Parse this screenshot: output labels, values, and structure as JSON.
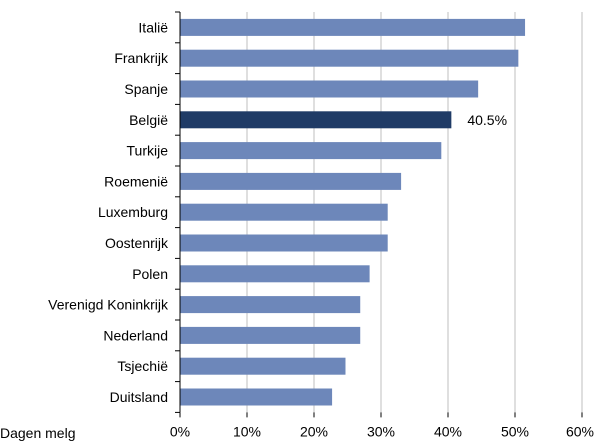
{
  "chart_data": {
    "type": "bar",
    "orientation": "horizontal",
    "categories": [
      "Italië",
      "Frankrijk",
      "Spanje",
      "België",
      "Turkije",
      "Roemenië",
      "Luxemburg",
      "Oostenrijk",
      "Polen",
      "Verenigd Koninkrijk",
      "Nederland",
      "Tsjechië",
      "Duitsland"
    ],
    "values": [
      51.5,
      50.5,
      44.5,
      40.5,
      39.0,
      33.0,
      31.0,
      31.0,
      28.3,
      26.9,
      26.9,
      24.7,
      22.7
    ],
    "highlight_category": "België",
    "data_labels": [
      {
        "category": "België",
        "text": "40.5%"
      }
    ],
    "xlim": [
      0,
      60
    ],
    "x_ticks": [
      0,
      10,
      20,
      30,
      40,
      50,
      60
    ],
    "x_tick_labels": [
      "0%",
      "10%",
      "20%",
      "30%",
      "40%",
      "50%",
      "60%"
    ],
    "grid": "vertical",
    "title": "",
    "xlabel": "",
    "ylabel": "",
    "colors": {
      "bar": "#6d87ba",
      "highlight": "#1f3b66",
      "grid": "#bfbfbf",
      "axis": "#000000"
    }
  },
  "footnote": "Dagen melg"
}
